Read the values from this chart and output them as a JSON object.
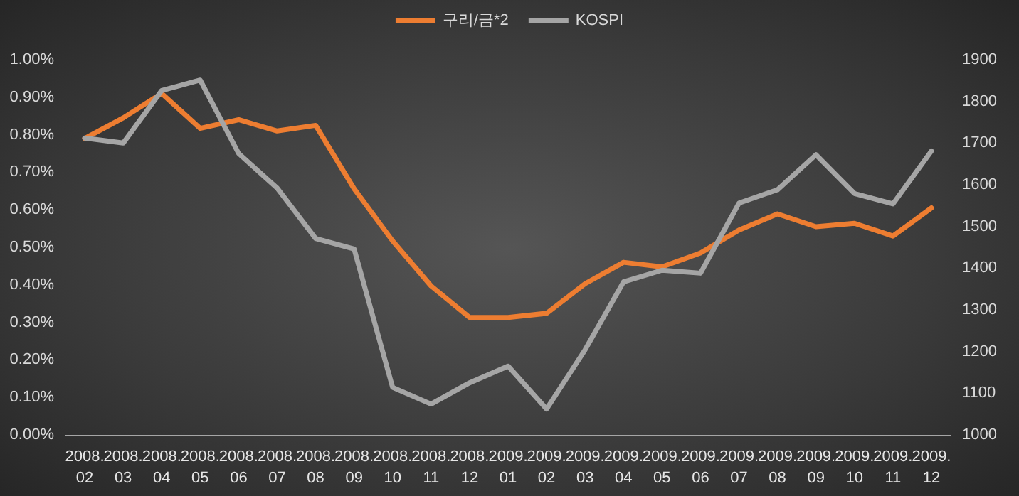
{
  "chart_data": {
    "type": "line",
    "categories": [
      "2008.02",
      "2008.03",
      "2008.04",
      "2008.05",
      "2008.06",
      "2008.07",
      "2008.08",
      "2008.09",
      "2008.10",
      "2008.11",
      "2008.12",
      "2009.01",
      "2009.02",
      "2009.03",
      "2009.04",
      "2009.05",
      "2009.06",
      "2009.07",
      "2009.08",
      "2009.09",
      "2009.10",
      "2009.11",
      "2009.12"
    ],
    "series": [
      {
        "name": "구리/금*2",
        "color": "#ed7d31",
        "values": [
          0.79,
          0.845,
          0.91,
          0.817,
          0.84,
          0.81,
          0.825,
          0.656,
          0.517,
          0.397,
          0.313,
          0.313,
          0.324,
          0.403,
          0.46,
          0.448,
          0.485,
          0.546,
          0.589,
          0.555,
          0.564,
          0.53,
          0.605
        ]
      },
      {
        "name": "KOSPI",
        "color": "#a5a5a5",
        "axis": "y2",
        "values": [
          1712,
          1700,
          1826,
          1851,
          1675,
          1592,
          1471,
          1446,
          1114,
          1074,
          1125,
          1165,
          1062,
          1204,
          1367,
          1395,
          1388,
          1556,
          1588,
          1672,
          1579,
          1554,
          1681
        ]
      }
    ],
    "ylim": [
      0,
      1
    ],
    "yticks": [
      {
        "value": 0,
        "label": "0.00%"
      },
      {
        "value": 0.1,
        "label": "0.10%"
      },
      {
        "value": 0.2,
        "label": "0.20%"
      },
      {
        "value": 0.3,
        "label": "0.30%"
      },
      {
        "value": 0.4,
        "label": "0.40%"
      },
      {
        "value": 0.5,
        "label": "0.50%"
      },
      {
        "value": 0.6,
        "label": "0.60%"
      },
      {
        "value": 0.7,
        "label": "0.70%"
      },
      {
        "value": 0.8,
        "label": "0.80%"
      },
      {
        "value": 0.9,
        "label": "0.90%"
      },
      {
        "value": 1,
        "label": "1.00%"
      }
    ],
    "y2lim": [
      1000,
      1900
    ],
    "y2ticks": [
      1000,
      1100,
      1200,
      1300,
      1400,
      1500,
      1600,
      1700,
      1800,
      1900
    ],
    "grid": false,
    "legend": "top",
    "marker": "none",
    "line_style": "solid"
  }
}
